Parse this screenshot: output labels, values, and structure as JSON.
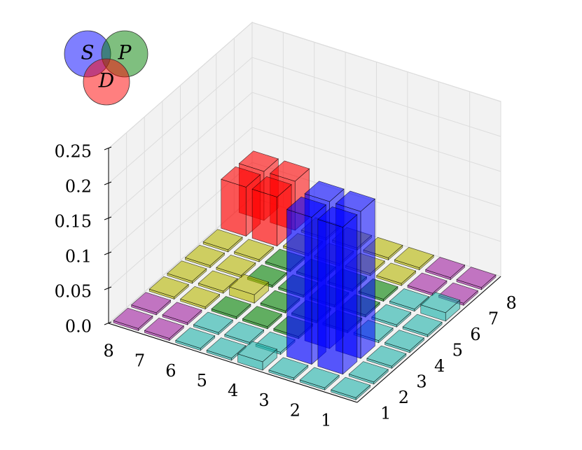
{
  "chart_data": {
    "type": "bar3d",
    "x_categories": [
      "1",
      "2",
      "3",
      "4",
      "5",
      "6",
      "7",
      "8"
    ],
    "y_categories": [
      "1",
      "2",
      "3",
      "4",
      "5",
      "6",
      "7",
      "8"
    ],
    "zlim": [
      0,
      0.25
    ],
    "zticks": [
      {
        "value": 0,
        "label": "0.0"
      },
      0.05,
      0.1,
      0.15,
      0.2,
      0.25
    ],
    "grid": true,
    "legend": [
      {
        "name": "S",
        "color": "#0000ff"
      },
      {
        "name": "P",
        "color": "#008000"
      },
      {
        "name": "D",
        "color": "#ff0000"
      }
    ],
    "values": [
      [
        0.003,
        0.003,
        0.003,
        0.003,
        0.003,
        0.012,
        0.003,
        0.003
      ],
      [
        0.003,
        0.21,
        0.21,
        0.003,
        0.003,
        0.003,
        0.003,
        0.003
      ],
      [
        0.003,
        0.21,
        0.21,
        0.003,
        0.003,
        0.003,
        0.003,
        0.003
      ],
      [
        0.012,
        0.003,
        0.003,
        0.003,
        0.003,
        0.003,
        0.003,
        0.003
      ],
      [
        0.003,
        0.003,
        0.003,
        0.003,
        0.003,
        0.003,
        0.003,
        0.003
      ],
      [
        0.003,
        0.003,
        0.003,
        0.012,
        0.003,
        0.003,
        0.003,
        0.003
      ],
      [
        0.003,
        0.003,
        0.003,
        0.003,
        0.003,
        0.003,
        0.07,
        0.07
      ],
      [
        0.003,
        0.003,
        0.003,
        0.003,
        0.003,
        0.003,
        0.07,
        0.07
      ]
    ],
    "colors": [
      [
        "#20b2aa",
        "#20b2aa",
        "#20b2aa",
        "#20b2aa",
        "#20b2aa",
        "#20b2aa",
        "#a020a0",
        "#a020a0"
      ],
      [
        "#20b2aa",
        "#0000ff",
        "#0000ff",
        "#20b2aa",
        "#20b2aa",
        "#20b2aa",
        "#a020a0",
        "#a020a0"
      ],
      [
        "#20b2aa",
        "#0000ff",
        "#0000ff",
        "#008000",
        "#008000",
        "#008000",
        "#b5b500",
        "#b5b500"
      ],
      [
        "#20b2aa",
        "#20b2aa",
        "#008000",
        "#008000",
        "#008000",
        "#008000",
        "#b5b500",
        "#b5b500"
      ],
      [
        "#20b2aa",
        "#20b2aa",
        "#008000",
        "#008000",
        "#008000",
        "#008000",
        "#b5b500",
        "#b5b500"
      ],
      [
        "#20b2aa",
        "#20b2aa",
        "#008000",
        "#b5b500",
        "#008000",
        "#008000",
        "#b5b500",
        "#b5b500"
      ],
      [
        "#a020a0",
        "#a020a0",
        "#b5b500",
        "#b5b500",
        "#b5b500",
        "#b5b500",
        "#ff0000",
        "#ff0000"
      ],
      [
        "#a020a0",
        "#a020a0",
        "#b5b500",
        "#b5b500",
        "#b5b500",
        "#b5b500",
        "#ff0000",
        "#ff0000"
      ]
    ]
  }
}
